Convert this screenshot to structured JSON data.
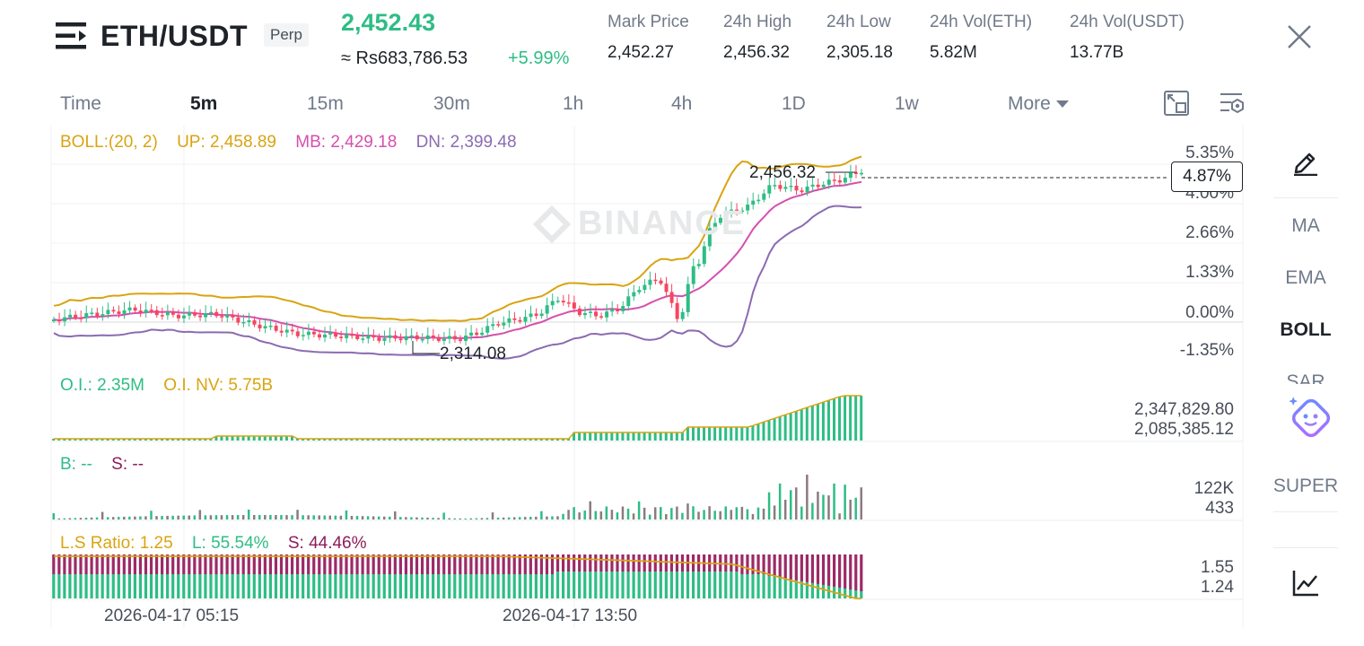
{
  "header": {
    "pair": "ETH/USDT",
    "contract_type": "Perp",
    "last_price": "2,452.43",
    "fiat_price": "≈ Rs683,786.53",
    "change_pct": "+5.99%",
    "stats": [
      {
        "label": "Mark Price",
        "value": "2,452.27"
      },
      {
        "label": "24h High",
        "value": "2,456.32"
      },
      {
        "label": "24h Low",
        "value": "2,305.18"
      },
      {
        "label": "24h Vol(ETH)",
        "value": "5.82M"
      },
      {
        "label": "24h Vol(USDT)",
        "value": "13.77B"
      }
    ]
  },
  "intervals": [
    "Time",
    "5m",
    "15m",
    "30m",
    "1h",
    "4h",
    "1D",
    "1w",
    "More"
  ],
  "active_interval": "5m",
  "boll": {
    "label": "BOLL:(20, 2)",
    "up": "UP: 2,458.89",
    "mb": "MB: 2,429.18",
    "dn": "DN: 2,399.48"
  },
  "price_axis": [
    "5.35%",
    "4.00%",
    "2.66%",
    "1.33%",
    "0.00%",
    "-1.35%"
  ],
  "current_tag": "4.87%",
  "high_marker": "2,456.32",
  "low_marker": "2,314.08",
  "watermark": "BINANCE",
  "oi": {
    "oi_label": "O.I.: 2.35M",
    "nv_label": "O.I. NV: 5.75B",
    "axis": [
      "2,347,829.80",
      "2,085,385.12"
    ]
  },
  "volume": {
    "b_label": "B: --",
    "s_label": "S: --",
    "axis": [
      "122K",
      "433"
    ]
  },
  "ls_ratio": {
    "ratio": "L.S Ratio: 1.25",
    "long": "L: 55.54%",
    "short": "S: 44.46%",
    "axis": [
      "1.55",
      "1.24"
    ]
  },
  "dates": [
    "2026-04-17 05:15",
    "2026-04-17 13:50"
  ],
  "side_menu": [
    "MA",
    "EMA",
    "BOLL",
    "SAR",
    "SUPER"
  ],
  "side_active": "BOLL",
  "colors": {
    "up": "#2ebd85",
    "down": "#f6465d",
    "boll_up": "#d9a411",
    "boll_mb": "#d64fae",
    "boll_dn": "#8b6bb1",
    "ls_long": "#2ebd85",
    "ls_short": "#9c2a67"
  }
}
